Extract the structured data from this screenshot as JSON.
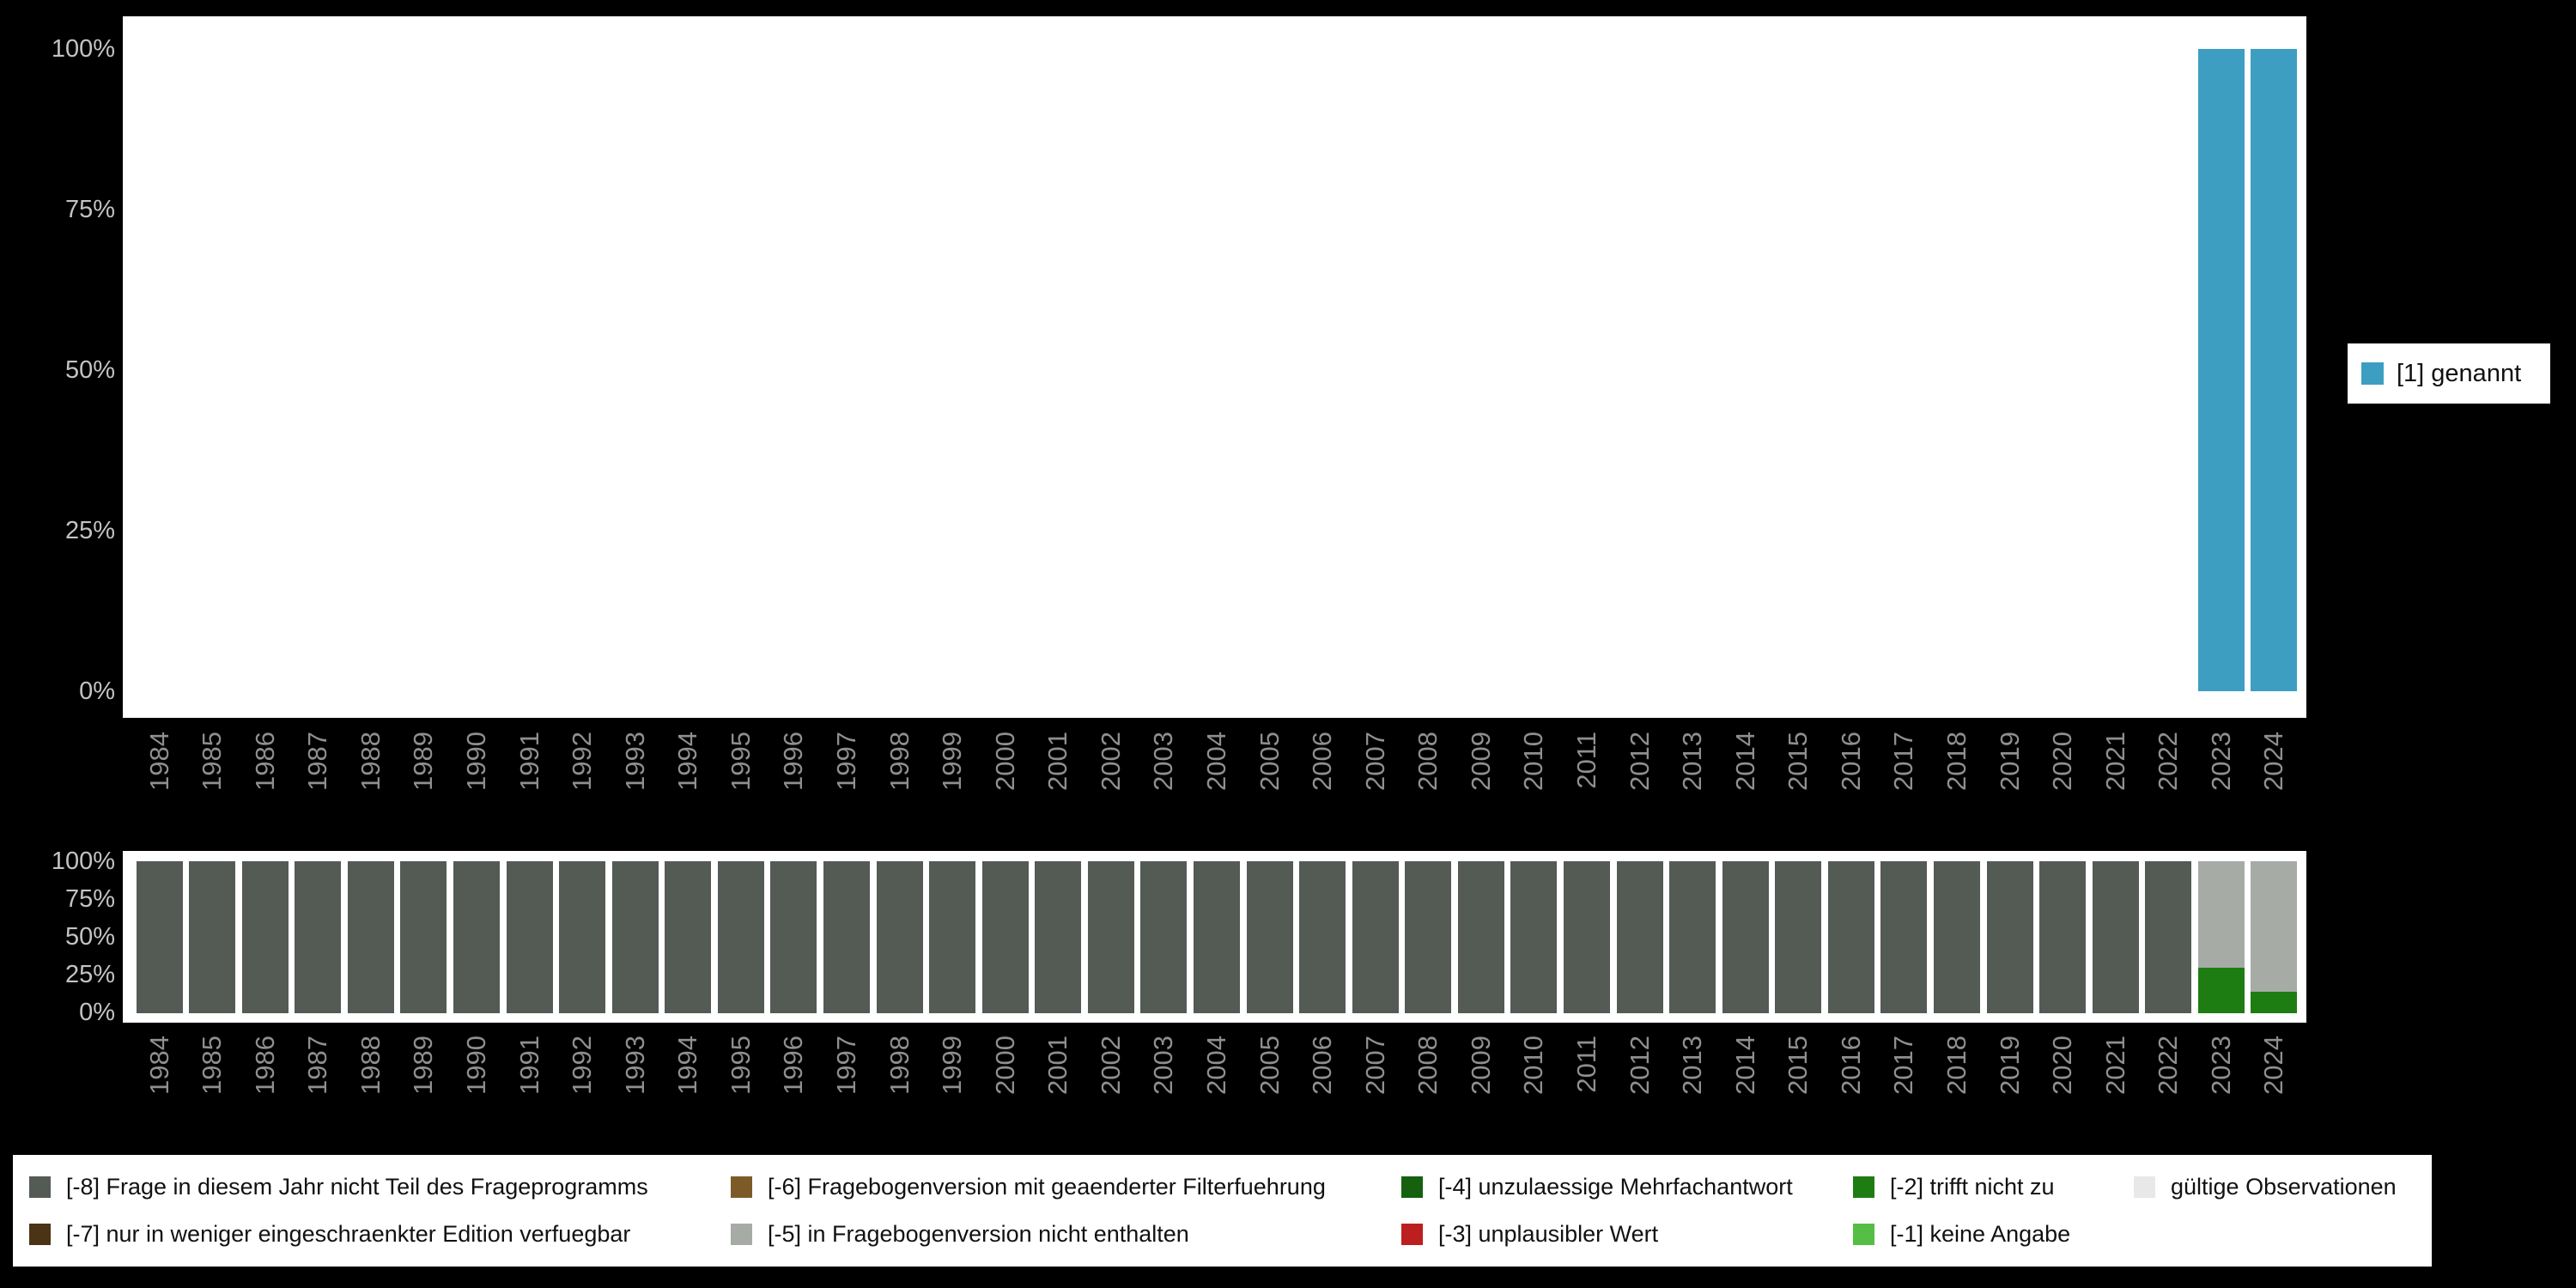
{
  "page": {
    "background": "#000000"
  },
  "chart_data": [
    {
      "name": "value-distribution-per-year",
      "type": "bar",
      "title": "",
      "xlabel": "",
      "ylabel": "",
      "ylim": [
        0,
        100
      ],
      "grid": false,
      "xtick_rotation": 90,
      "yticks": [
        "100%",
        "75%",
        "50%",
        "25%",
        "0%"
      ],
      "ytick_values": [
        100,
        75,
        50,
        25,
        0
      ],
      "x": [
        "1984",
        "1985",
        "1986",
        "1987",
        "1988",
        "1989",
        "1990",
        "1991",
        "1992",
        "1993",
        "1994",
        "1995",
        "1996",
        "1997",
        "1998",
        "1999",
        "2000",
        "2001",
        "2002",
        "2003",
        "2004",
        "2005",
        "2006",
        "2007",
        "2008",
        "2009",
        "2010",
        "2011",
        "2012",
        "2013",
        "2014",
        "2015",
        "2016",
        "2017",
        "2018",
        "2019",
        "2020",
        "2021",
        "2022",
        "2023",
        "2024"
      ],
      "legend_position": "right",
      "series": [
        {
          "name": "[1] genannt",
          "color": "#3D9EC2",
          "values": [
            0,
            0,
            0,
            0,
            0,
            0,
            0,
            0,
            0,
            0,
            0,
            0,
            0,
            0,
            0,
            0,
            0,
            0,
            0,
            0,
            0,
            0,
            0,
            0,
            0,
            0,
            0,
            0,
            0,
            0,
            0,
            0,
            0,
            0,
            0,
            0,
            0,
            0,
            0,
            100,
            100
          ]
        }
      ]
    },
    {
      "name": "missing-codes-per-year",
      "type": "stacked-bar",
      "title": "",
      "xlabel": "",
      "ylabel": "",
      "ylim": [
        0,
        100
      ],
      "grid": false,
      "xtick_rotation": 90,
      "yticks": [
        "100%",
        "75%",
        "50%",
        "25%",
        "0%"
      ],
      "ytick_values": [
        100,
        75,
        50,
        25,
        0
      ],
      "x": [
        "1984",
        "1985",
        "1986",
        "1987",
        "1988",
        "1989",
        "1990",
        "1991",
        "1992",
        "1993",
        "1994",
        "1995",
        "1996",
        "1997",
        "1998",
        "1999",
        "2000",
        "2001",
        "2002",
        "2003",
        "2004",
        "2005",
        "2006",
        "2007",
        "2008",
        "2009",
        "2010",
        "2011",
        "2012",
        "2013",
        "2014",
        "2015",
        "2016",
        "2017",
        "2018",
        "2019",
        "2020",
        "2021",
        "2022",
        "2023",
        "2024"
      ],
      "legend_position": "bottom",
      "series": [
        {
          "name": "[-8] Frage in diesem Jahr nicht Teil des Frageprogramms",
          "color": "#535B54",
          "values": [
            100,
            100,
            100,
            100,
            100,
            100,
            100,
            100,
            100,
            100,
            100,
            100,
            100,
            100,
            100,
            100,
            100,
            100,
            100,
            100,
            100,
            100,
            100,
            100,
            100,
            100,
            100,
            100,
            100,
            100,
            100,
            100,
            100,
            100,
            100,
            100,
            100,
            100,
            100,
            0,
            0
          ]
        },
        {
          "name": "[-2] trifft nicht zu",
          "color": "#1E7D12",
          "values": [
            0,
            0,
            0,
            0,
            0,
            0,
            0,
            0,
            0,
            0,
            0,
            0,
            0,
            0,
            0,
            0,
            0,
            0,
            0,
            0,
            0,
            0,
            0,
            0,
            0,
            0,
            0,
            0,
            0,
            0,
            0,
            0,
            0,
            0,
            0,
            0,
            0,
            0,
            0,
            30,
            14
          ]
        },
        {
          "name": "[-5] in Fragebogenversion nicht enthalten",
          "color": "#A6ABA6",
          "values": [
            0,
            0,
            0,
            0,
            0,
            0,
            0,
            0,
            0,
            0,
            0,
            0,
            0,
            0,
            0,
            0,
            0,
            0,
            0,
            0,
            0,
            0,
            0,
            0,
            0,
            0,
            0,
            0,
            0,
            0,
            0,
            0,
            0,
            0,
            0,
            0,
            0,
            0,
            0,
            70,
            86
          ]
        }
      ]
    }
  ],
  "legend_right": {
    "items": [
      {
        "label": "[1] genannt",
        "color": "#3D9EC2"
      }
    ]
  },
  "legend_bottom": {
    "columns": [
      {
        "items": [
          {
            "label": "[-8] Frage in diesem Jahr nicht Teil des Frageprogramms",
            "color": "#535B54"
          },
          {
            "label": "[-7] nur in weniger eingeschraenkter Edition verfuegbar",
            "color": "#4B3315"
          }
        ]
      },
      {
        "items": [
          {
            "label": "[-6] Fragebogenversion mit geaenderter Filterfuehrung",
            "color": "#7D5B28"
          },
          {
            "label": "[-5] in Fragebogenversion nicht enthalten",
            "color": "#A6ABA6"
          }
        ]
      },
      {
        "items": [
          {
            "label": "[-4] unzulaessige Mehrfachantwort",
            "color": "#156110"
          },
          {
            "label": "[-3] unplausibler Wert",
            "color": "#BB1F1F"
          }
        ]
      },
      {
        "items": [
          {
            "label": "[-2] trifft nicht zu",
            "color": "#1E7D12"
          },
          {
            "label": "[-1] keine Angabe",
            "color": "#55BE45"
          }
        ]
      },
      {
        "items": [
          {
            "label": "gültige Observationen",
            "color": "#E8E8E8"
          }
        ]
      }
    ]
  }
}
